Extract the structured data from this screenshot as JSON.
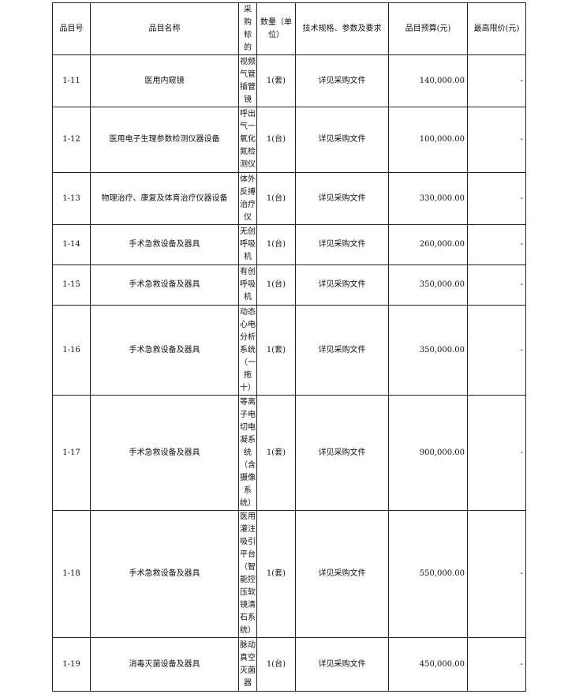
{
  "table": {
    "headers": [
      "品目号",
      "品目名称",
      "采购标的",
      "数量（单位）",
      "技术规格、参数及要求",
      "品目预算(元)",
      "最高限价(元)"
    ],
    "rows": [
      {
        "id": "1-11",
        "name": "医用内窥镜",
        "target": "视频气管插管镜",
        "qty": "1(套)",
        "spec": "详见采购文件",
        "budget": "140,000.00",
        "max": "-"
      },
      {
        "id": "1-12",
        "name": "医用电子生理参数检测仪器设备",
        "target": "呼出气一氧化氮检测仪",
        "qty": "1(台)",
        "spec": "详见采购文件",
        "budget": "100,000.00",
        "max": "-"
      },
      {
        "id": "1-13",
        "name": "物理治疗、康复及体育治疗仪器设备",
        "target": "体外反搏治疗仪",
        "qty": "1(台)",
        "spec": "详见采购文件",
        "budget": "330,000.00",
        "max": "-"
      },
      {
        "id": "1-14",
        "name": "手术急救设备及器具",
        "target": "无创呼吸机",
        "qty": "1(台)",
        "spec": "详见采购文件",
        "budget": "260,000.00",
        "max": "-"
      },
      {
        "id": "1-15",
        "name": "手术急救设备及器具",
        "target": "有创呼吸机",
        "qty": "1(台)",
        "spec": "详见采购文件",
        "budget": "350,000.00",
        "max": "-"
      },
      {
        "id": "1-16",
        "name": "手术急救设备及器具",
        "target": "动态心电分析系统（一拖十）",
        "qty": "1(套)",
        "spec": "详见采购文件",
        "budget": "350,000.00",
        "max": "-"
      },
      {
        "id": "1-17",
        "name": "手术急救设备及器具",
        "target": "等离子电切电凝系统（含摄像系统）",
        "qty": "1(套)",
        "spec": "详见采购文件",
        "budget": "900,000.00",
        "max": "-"
      },
      {
        "id": "1-18",
        "name": "手术急救设备及器具",
        "target": "医用灌注吸引平台（智能控压软镜清石系统）",
        "qty": "1(套)",
        "spec": "详见采购文件",
        "budget": "550,000.00",
        "max": "-"
      },
      {
        "id": "1-19",
        "name": "消毒灭菌设备及器具",
        "target": "脉动真空灭菌器",
        "qty": "1(台)",
        "spec": "详见采购文件",
        "budget": "450,000.00",
        "max": "-"
      }
    ]
  }
}
